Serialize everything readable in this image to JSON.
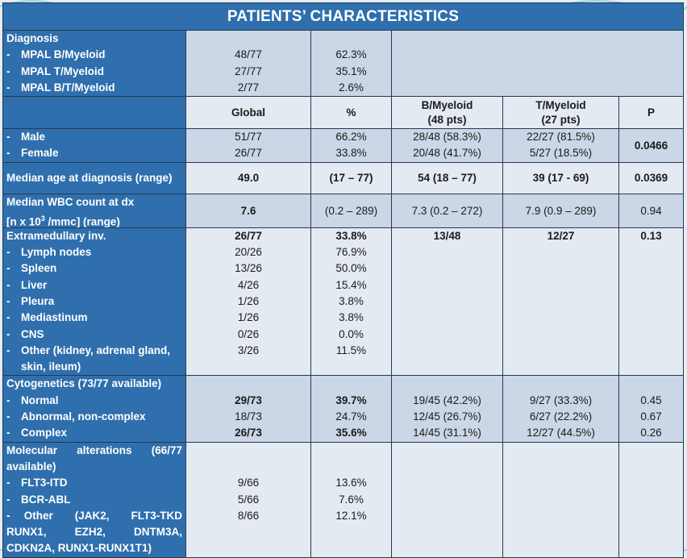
{
  "title": "PATIENTS’ CHARACTERISTICS",
  "columns": {
    "global": "Global",
    "pct": "%",
    "b": "B/Myeloid",
    "b_n": "(48 pts)",
    "t": "T/Myeloid",
    "t_n": "(27 pts)",
    "p": "P"
  },
  "diagnosis": {
    "label": "Diagnosis",
    "items": [
      {
        "label": "MPAL B/Myeloid",
        "global": "48/77",
        "pct": "62.3%"
      },
      {
        "label": "MPAL T/Myeloid",
        "global": "27/77",
        "pct": "35.1%"
      },
      {
        "label": "MPAL B/T/Myeloid",
        "global": "2/77",
        "pct": "2.6%"
      }
    ]
  },
  "sex": {
    "items": [
      {
        "label": "Male",
        "global": "51/77",
        "pct": "66.2%",
        "b": "28/48 (58.3%)",
        "t": "22/27 (81.5%)"
      },
      {
        "label": "Female",
        "global": "26/77",
        "pct": "33.8%",
        "b": "20/48 (41.7%)",
        "t": "5/27 (18.5%)"
      }
    ],
    "p": "0.0466"
  },
  "age": {
    "label": "Median age at diagnosis (range)",
    "global": "49.0",
    "pct": "(17 – 77)",
    "b": "54 (18 – 77)",
    "t": "39 (17 - 69)",
    "p": "0.0369"
  },
  "wbc": {
    "label1": "Median WBC count at dx",
    "label2_pre": "[n x 10",
    "label2_sup": "3",
    "label2_post": " /mmc] (range)",
    "global": "7.6",
    "pct": "(0.2 – 289)",
    "b": "7.3 (0.2 – 272)",
    "t": "7.9 (0.9 – 289)",
    "p": "0.94"
  },
  "extra": {
    "label": "Extramedullary inv.",
    "global": "26/77",
    "pct": "33.8%",
    "b": "13/48",
    "t": "12/27",
    "p": "0.13",
    "items": [
      {
        "label": "Lymph nodes",
        "global": "20/26",
        "pct": "76.9%"
      },
      {
        "label": "Spleen",
        "global": "13/26",
        "pct": "50.0%"
      },
      {
        "label": "Liver",
        "global": "4/26",
        "pct": "15.4%"
      },
      {
        "label": "Pleura",
        "global": "1/26",
        "pct": "3.8%"
      },
      {
        "label": "Mediastinum",
        "global": "1/26",
        "pct": "3.8%"
      },
      {
        "label": "CNS",
        "global": "0/26",
        "pct": "0.0%"
      }
    ],
    "other": {
      "label1": "Other (kidney, adrenal gland,",
      "label2": "skin, ileum)",
      "global": "3/26",
      "pct": "11.5%"
    }
  },
  "cyto": {
    "label": "Cytogenetics (73/77 available)",
    "items": [
      {
        "label": "Normal",
        "global": "29/73",
        "pct": "39.7%",
        "b": "19/45 (42.2%)",
        "t": "9/27 (33.3%)",
        "p": "0.45"
      },
      {
        "label": "Abnormal, non-complex",
        "global": "18/73",
        "pct": "24.7%",
        "b": "12/45 (26.7%)",
        "t": "6/27 (22.2%)",
        "p": "0.67"
      },
      {
        "label": "Complex",
        "global": "26/73",
        "pct": "35.6%",
        "b": "14/45 (31.1%)",
        "t": "12/27 (44.5%)",
        "p": "0.26"
      }
    ]
  },
  "mol": {
    "label_words": [
      "Molecular",
      "alterations",
      "(66/77"
    ],
    "label2": "available)",
    "items": [
      {
        "label": "FLT3-ITD",
        "global": "9/66",
        "pct": "13.6%"
      },
      {
        "label": "BCR-ABL",
        "global": "5/66",
        "pct": "7.6%"
      }
    ],
    "other_words1": [
      "Other",
      "(JAK2,",
      "FLT3-TKD,"
    ],
    "other_words2": [
      "RUNX1,",
      "EZH2,",
      "DNTM3A,"
    ],
    "other3": "CDKN2A, RUNX1-RUNX1T1)",
    "other_global": "8/66",
    "other_pct": "12.1%"
  }
}
